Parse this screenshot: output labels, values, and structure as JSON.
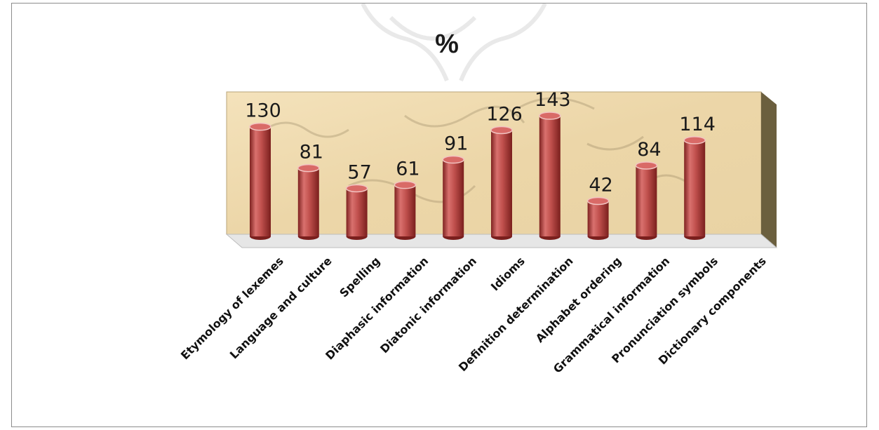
{
  "chart_data": {
    "type": "bar",
    "title": "%",
    "categories": [
      "Etymology of lexemes",
      "Language and culture",
      "Spelling",
      "Diaphasic information",
      "Diatonic information",
      "Idioms",
      "Definition determination",
      "Alphabet ordering",
      "Grammatical information",
      "Pronunciation symbols",
      "Dictionary components"
    ],
    "series": [
      {
        "values": [
          130,
          81,
          57,
          61,
          91,
          126,
          143,
          42,
          84,
          114,
          null
        ]
      }
    ],
    "data_labels": [
      "130",
      "81",
      "57",
      "61",
      "91",
      "126",
      "143",
      "42",
      "84",
      "114",
      ""
    ],
    "ylim": [
      0,
      150
    ],
    "grid": false,
    "legend": "none",
    "style": "3d-cylinder",
    "colors": {
      "bar": "#c0504d",
      "bar_dark": "#8e2a28",
      "bar_light": "#e8a09e",
      "wall": "#efdcb4",
      "wall_side": "#6b5f3e",
      "floor": "#e6e6e6"
    }
  }
}
